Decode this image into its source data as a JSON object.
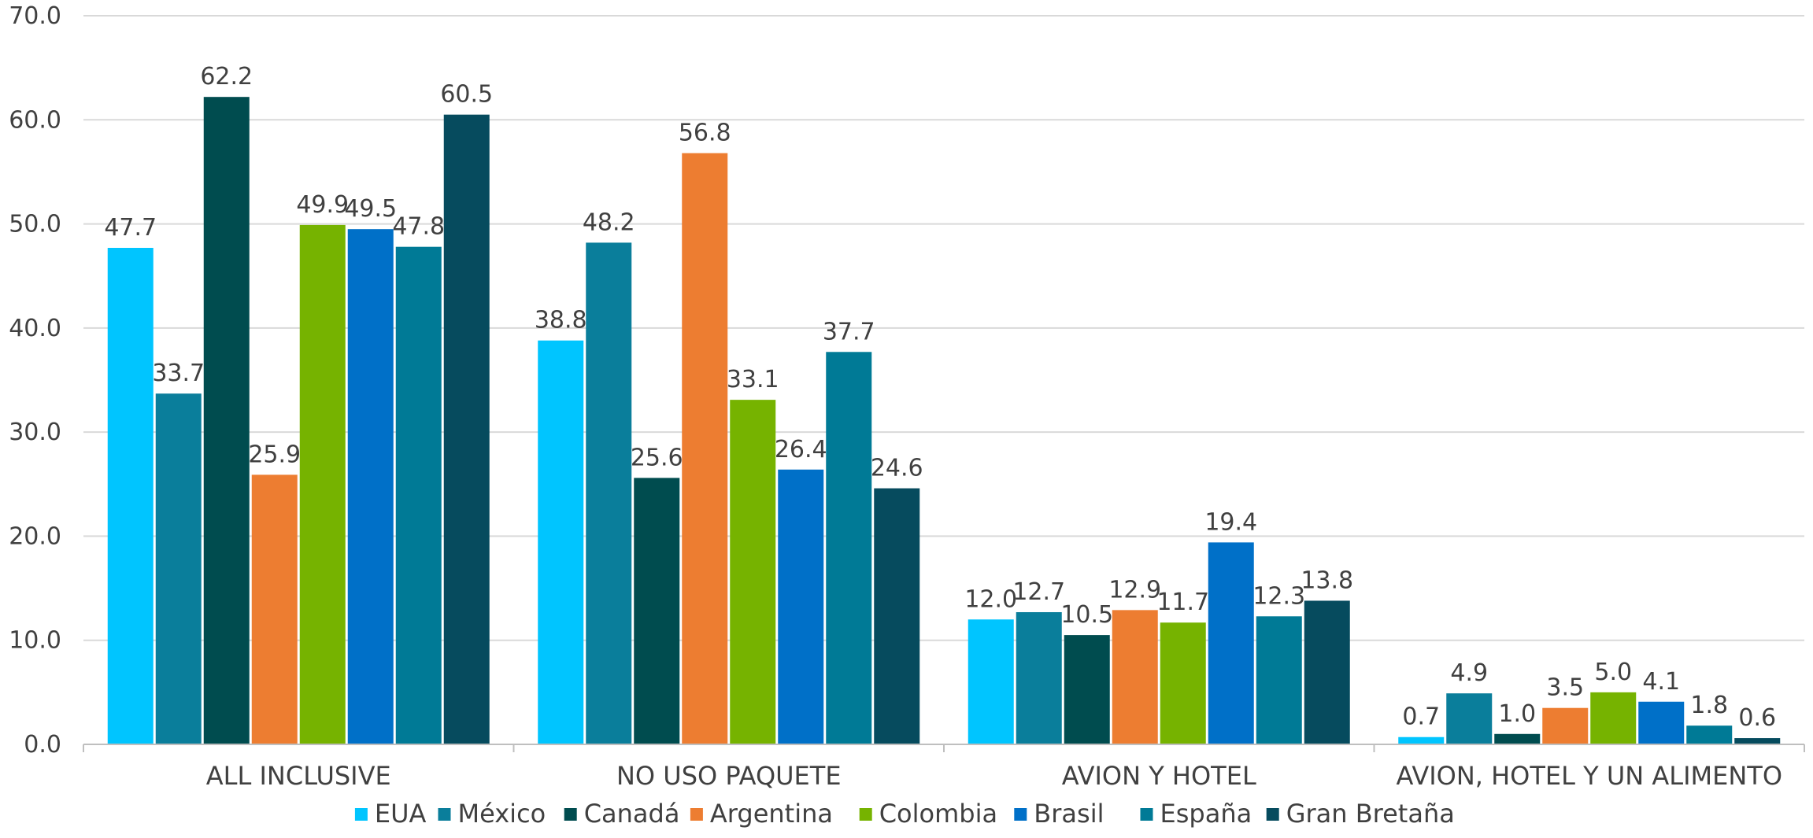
{
  "chart_data": {
    "type": "bar",
    "categories": [
      "ALL INCLUSIVE",
      "NO USO PAQUETE",
      "AVION Y HOTEL",
      "AVION, HOTEL Y UN ALIMENTO"
    ],
    "series": [
      {
        "name": "EUA",
        "color": "#00C5FF",
        "values": [
          47.7,
          38.8,
          12.0,
          0.7
        ]
      },
      {
        "name": "México",
        "color": "#0A7E9B",
        "values": [
          33.7,
          48.2,
          12.7,
          4.9
        ]
      },
      {
        "name": "Canadá",
        "color": "#004C4F",
        "values": [
          62.2,
          25.6,
          10.5,
          1.0
        ]
      },
      {
        "name": "Argentina",
        "color": "#ED7D31",
        "values": [
          25.9,
          56.8,
          12.9,
          3.5
        ]
      },
      {
        "name": "Colombia",
        "color": "#76B300",
        "values": [
          49.9,
          33.1,
          11.7,
          5.0
        ]
      },
      {
        "name": "Brasil",
        "color": "#0070C8",
        "values": [
          49.5,
          26.4,
          19.4,
          4.1
        ]
      },
      {
        "name": "España",
        "color": "#007A96",
        "values": [
          47.8,
          37.7,
          12.3,
          1.8
        ]
      },
      {
        "name": "Gran Bretaña",
        "color": "#064B5E",
        "values": [
          60.5,
          24.6,
          13.8,
          0.6
        ]
      }
    ],
    "yticks": [
      "0.0",
      "10.0",
      "20.0",
      "30.0",
      "40.0",
      "50.0",
      "60.0",
      "70.0"
    ],
    "ylim": [
      0,
      70
    ],
    "grid": true,
    "legend": "bottom",
    "data_labels": [
      "47.7",
      "33.7",
      "62.2",
      "25.9",
      "49.9",
      "49.5",
      "47.8",
      "60.5",
      "38.8",
      "48.2",
      "25.6",
      "56.8",
      "33.1",
      "26.4",
      "37.7",
      "24.6",
      "12.0",
      "12.7",
      "10.5",
      "12.9",
      "11.7",
      "19.4",
      "12.3",
      "13.8",
      "0.7",
      "4.9",
      "1.0",
      "3.5",
      "5.0",
      "4.1",
      "1.8",
      "0.6"
    ]
  }
}
